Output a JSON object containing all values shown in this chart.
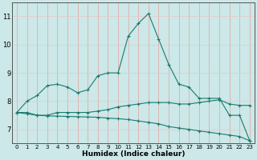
{
  "title": "",
  "xlabel": "Humidex (Indice chaleur)",
  "background_color": "#cce8e8",
  "line_color": "#1a7a6e",
  "grid_color_v": "#e8a0a0",
  "grid_color_h": "#e8c8c8",
  "xlim": [
    -0.5,
    23.5
  ],
  "ylim": [
    6.5,
    11.5
  ],
  "yticks": [
    7,
    8,
    9,
    10,
    11
  ],
  "xticks": [
    0,
    1,
    2,
    3,
    4,
    5,
    6,
    7,
    8,
    9,
    10,
    11,
    12,
    13,
    14,
    15,
    16,
    17,
    18,
    19,
    20,
    21,
    22,
    23
  ],
  "line1_x": [
    0,
    1,
    2,
    3,
    4,
    5,
    6,
    7,
    8,
    9,
    10,
    11,
    12,
    13,
    14,
    15,
    16,
    17,
    18,
    19,
    20,
    21,
    22,
    23
  ],
  "line1_y": [
    7.6,
    8.0,
    8.2,
    8.55,
    8.6,
    8.5,
    8.3,
    8.4,
    8.9,
    9.0,
    9.0,
    10.3,
    10.75,
    11.1,
    10.2,
    9.3,
    8.6,
    8.5,
    8.1,
    8.1,
    8.1,
    7.5,
    7.5,
    6.6
  ],
  "line2_x": [
    0,
    1,
    2,
    3,
    4,
    5,
    6,
    7,
    8,
    9,
    10,
    11,
    12,
    13,
    14,
    15,
    16,
    17,
    18,
    19,
    20,
    21,
    22,
    23
  ],
  "line2_y": [
    7.6,
    7.6,
    7.5,
    7.5,
    7.6,
    7.6,
    7.6,
    7.6,
    7.65,
    7.7,
    7.8,
    7.85,
    7.9,
    7.95,
    7.95,
    7.95,
    7.9,
    7.9,
    7.95,
    8.0,
    8.05,
    7.9,
    7.85,
    7.85
  ],
  "line3_x": [
    0,
    1,
    2,
    3,
    4,
    5,
    6,
    7,
    8,
    9,
    10,
    11,
    12,
    13,
    14,
    15,
    16,
    17,
    18,
    19,
    20,
    21,
    22,
    23
  ],
  "line3_y": [
    7.6,
    7.55,
    7.5,
    7.48,
    7.47,
    7.46,
    7.45,
    7.44,
    7.43,
    7.4,
    7.38,
    7.35,
    7.3,
    7.25,
    7.2,
    7.1,
    7.05,
    7.0,
    6.95,
    6.9,
    6.85,
    6.8,
    6.75,
    6.6
  ]
}
